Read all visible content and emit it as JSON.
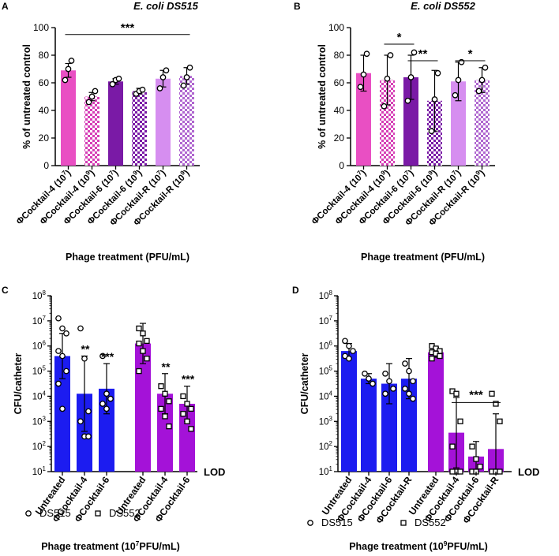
{
  "colors": {
    "pink": "#e94fc3",
    "pink_check_dark": "#d63fb6",
    "purple": "#7a1aa6",
    "violet": "#a412d8",
    "lilac": "#d68ef0",
    "lilac_check_dark": "#b067d0",
    "blue": "#1c1cf0",
    "axis": "#000000"
  },
  "chart_data": [
    {
      "panel": "A",
      "type": "bar",
      "title": "E. coli DS515",
      "ylabel": "% of untreated control",
      "xlabel": "Phage treatment (PFU/mL)",
      "ylim": [
        0,
        100
      ],
      "yticks": [
        "0",
        "20",
        "40",
        "60",
        "80",
        "100"
      ],
      "categories": [
        {
          "base": "ΦCocktail-4 (10",
          "exp": "7",
          "tail": ")"
        },
        {
          "base": "ΦCocktail-4 (10",
          "exp": "9",
          "tail": ")"
        },
        {
          "base": "ΦCocktail-6 (10",
          "exp": "7",
          "tail": ")"
        },
        {
          "base": "ΦCocktail-6 (10",
          "exp": "9",
          "tail": ")"
        },
        {
          "base": "ΦCocktail-R (10",
          "exp": "7",
          "tail": ")"
        },
        {
          "base": "ΦCocktail-R (10",
          "exp": "9",
          "tail": ")"
        }
      ],
      "values": [
        69,
        50,
        61,
        54,
        63,
        65
      ],
      "err": [
        5,
        3,
        2,
        2,
        6,
        6
      ],
      "points": [
        [
          62,
          70,
          76
        ],
        [
          46,
          50,
          54
        ],
        [
          59,
          62,
          63
        ],
        [
          52,
          54,
          55
        ],
        [
          56,
          64,
          69
        ],
        [
          58,
          64,
          71
        ]
      ],
      "fills": [
        "pink",
        "pink_check",
        "purple",
        "purple_check",
        "lilac",
        "lilac_check"
      ],
      "significance": [
        {
          "label": "***",
          "from": 0,
          "to": 5,
          "y": 95
        }
      ]
    },
    {
      "panel": "B",
      "type": "bar",
      "title": "E. coli DS552",
      "ylabel": "% of untreated control",
      "xlabel": "Phage treatment (PFU/mL)",
      "ylim": [
        0,
        100
      ],
      "yticks": [
        "0",
        "20",
        "40",
        "60",
        "80",
        "100"
      ],
      "categories": [
        {
          "base": "ΦCocktail-4 (10",
          "exp": "7",
          "tail": ")"
        },
        {
          "base": "ΦCocktail-4 (10",
          "exp": "9",
          "tail": ")"
        },
        {
          "base": "ΦCocktail-6 (10",
          "exp": "7",
          "tail": ")"
        },
        {
          "base": "ΦCocktail-6 (10",
          "exp": "9",
          "tail": ")"
        },
        {
          "base": "ΦCocktail-R (10",
          "exp": "7",
          "tail": ")"
        },
        {
          "base": "ΦCocktail-R (10",
          "exp": "9",
          "tail": ")"
        }
      ],
      "values": [
        67,
        62,
        64,
        47,
        61,
        62
      ],
      "err": [
        13,
        18,
        16,
        22,
        14,
        9
      ],
      "points": [
        [
          57,
          66,
          81
        ],
        [
          43,
          63,
          80
        ],
        [
          47,
          64,
          82
        ],
        [
          25,
          48,
          67
        ],
        [
          51,
          62,
          75
        ],
        [
          54,
          62,
          71
        ]
      ],
      "fills": [
        "pink",
        "pink_check",
        "purple",
        "purple_check",
        "lilac",
        "lilac_check"
      ],
      "significance": [
        {
          "label": "*",
          "from": 1,
          "to": 2,
          "y": 88
        },
        {
          "label": "**",
          "from": 2,
          "to": 3,
          "y": 76
        },
        {
          "label": "*",
          "from": 4,
          "to": 5,
          "y": 76
        }
      ]
    },
    {
      "panel": "C",
      "type": "bar",
      "yscale": "log",
      "ylabel": "CFU/catheter",
      "xlabel_base": "Phage treatment (10",
      "xlabel_exp": "7",
      "xlabel_tail": "PFU/mL)",
      "ylim_exp": [
        1,
        8
      ],
      "ytick_exps": [
        "1",
        "2",
        "3",
        "4",
        "5",
        "6",
        "7",
        "8"
      ],
      "lod_label": "LOD",
      "categories": [
        "Untreated",
        "ΦCocktail-4",
        "ΦCocktail-6",
        "Untreated",
        "ΦCocktail-4",
        "ΦCocktail-6"
      ],
      "values_log10": [
        5.6,
        4.1,
        4.3,
        6.1,
        4.1,
        3.7
      ],
      "err_log10": [
        0.9,
        1.5,
        1.0,
        0.8,
        0.8,
        0.7
      ],
      "circles": [
        [
          7.1,
          6.7,
          6.5,
          5.8,
          5.6,
          5.0,
          4.5,
          3.5
        ],
        [
          6.7,
          5.5,
          3.4,
          3.0,
          2.4,
          2.4
        ],
        [
          5.6,
          4.1,
          3.9,
          3.7,
          3.5
        ]
      ],
      "squares": [
        [],
        [],
        [],
        [
          6.7,
          6.5,
          6.2,
          6.1,
          5.8,
          5.5,
          5.0
        ],
        [
          4.4,
          4.1,
          3.8,
          3.5,
          3.2,
          2.8
        ],
        [
          4.0,
          3.7,
          3.5,
          3.3,
          3.0,
          2.7
        ]
      ],
      "fills": [
        "blue",
        "blue",
        "blue",
        "violet",
        "violet",
        "violet"
      ],
      "stars": [
        "",
        "**",
        "***",
        "",
        "**",
        "***"
      ],
      "legend": [
        {
          "marker": "circle",
          "label": "DS515"
        },
        {
          "marker": "square",
          "label": "DS552"
        }
      ]
    },
    {
      "panel": "D",
      "type": "bar",
      "yscale": "log",
      "ylabel": "CFU/catheter",
      "xlabel_base": "Phage treatment (10",
      "xlabel_exp": "9",
      "xlabel_tail": "PFU/mL)",
      "ylim_exp": [
        1,
        8
      ],
      "ytick_exps": [
        "1",
        "2",
        "3",
        "4",
        "5",
        "6",
        "7",
        "8"
      ],
      "lod_label": "LOD",
      "categories": [
        "Untreated",
        "ΦCocktail-4",
        "ΦCocktail-6",
        "ΦCocktail-R",
        "Untreated",
        "ΦCocktail-4",
        "ΦCocktail-6",
        "ΦCocktail-R"
      ],
      "values_log10": [
        5.8,
        4.7,
        4.5,
        4.7,
        5.75,
        2.55,
        1.6,
        1.9
      ],
      "err_log10": [
        0.3,
        0.2,
        0.8,
        0.8,
        0.2,
        1.4,
        0.6,
        1.4
      ],
      "circles": [
        [
          6.2,
          6.0,
          5.8,
          5.6,
          5.5
        ],
        [
          4.9,
          4.7,
          4.5
        ],
        [
          4.9,
          4.6,
          4.3,
          4.1
        ],
        [
          5.3,
          5.0,
          4.6,
          4.3,
          4.1,
          3.9
        ]
      ],
      "squares": [
        [],
        [],
        [],
        [],
        [
          6.0,
          5.9,
          5.8,
          5.75,
          5.7,
          5.6,
          5.5
        ],
        [
          4.2,
          4.1,
          3.0,
          2.0,
          1.0,
          1.0,
          1.0
        ],
        [
          2.0,
          1.5,
          1.2,
          1.0,
          1.0
        ],
        [
          4.1,
          3.7,
          3.0,
          1.0,
          1.0,
          1.0
        ]
      ],
      "fills": [
        "blue",
        "blue",
        "blue",
        "blue",
        "violet",
        "violet",
        "violet",
        "violet"
      ],
      "stars": [],
      "significance": [
        {
          "label": "***",
          "from": 5,
          "to": 7,
          "y_log10": 3.75
        }
      ],
      "legend": [
        {
          "marker": "circle",
          "label": "DS515"
        },
        {
          "marker": "square",
          "label": "DS552"
        }
      ]
    }
  ]
}
